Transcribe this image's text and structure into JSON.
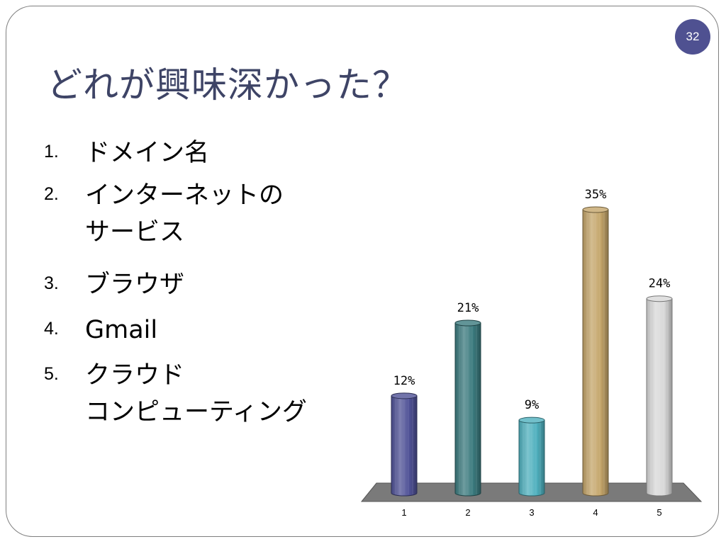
{
  "slide": {
    "number": "32",
    "number_bg": "#4f5191",
    "title": "どれが興味深かった？"
  },
  "list": {
    "items": [
      {
        "num": "1.",
        "label": "ドメイン名"
      },
      {
        "num": "2.",
        "label": "インターネットの\nサービス"
      },
      {
        "num": "3.",
        "label": "ブラウザ"
      },
      {
        "num": "4.",
        "label": "Gmail"
      },
      {
        "num": "5.",
        "label": "クラウド\nコンピューティング"
      }
    ]
  },
  "chart_data": {
    "type": "bar",
    "style": "3d-cylinder",
    "categories": [
      "1",
      "2",
      "3",
      "4",
      "5"
    ],
    "values": [
      12,
      21,
      9,
      35,
      24
    ],
    "data_labels": [
      "12%",
      "21%",
      "9%",
      "35%",
      "24%"
    ],
    "ylim": [
      0,
      35
    ],
    "colors": [
      "#4f5196",
      "#3b7a7e",
      "#4fb0be",
      "#c4a56a",
      "#d8d8d8"
    ],
    "floor_color": "#7a7a7a",
    "grid": false,
    "legend": "none"
  }
}
